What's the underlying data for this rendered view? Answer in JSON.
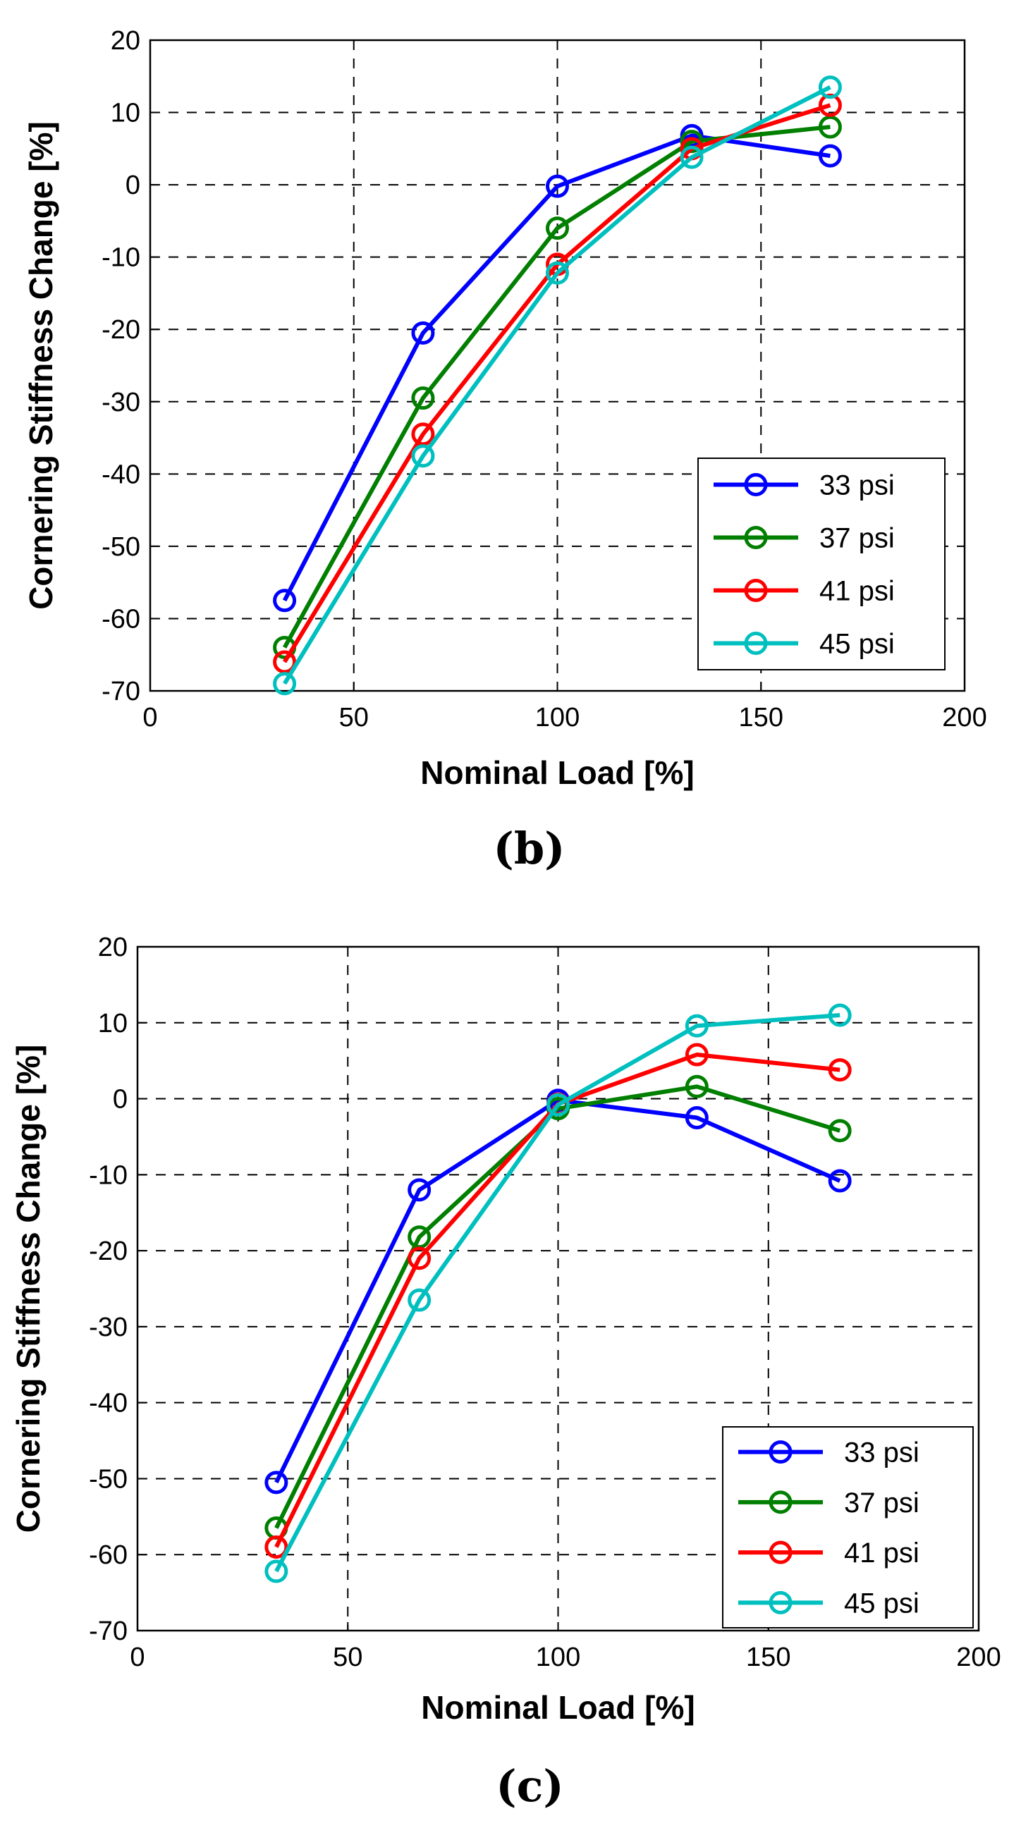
{
  "chart_data": [
    {
      "type": "line",
      "panel": "(b)",
      "title": "",
      "xlabel": "Nominal Load [%]",
      "ylabel": "Cornering Stiffness Change [%]",
      "xlim": [
        0,
        200
      ],
      "ylim": [
        -70,
        20
      ],
      "xticks": [
        0,
        50,
        100,
        150,
        200
      ],
      "yticks": [
        20,
        10,
        0,
        -10,
        -20,
        -30,
        -40,
        -50,
        -60,
        -70
      ],
      "grid": true,
      "legend_position": "lower-right",
      "x": [
        33,
        67,
        100,
        133,
        167
      ],
      "series": [
        {
          "name": "33 psi",
          "color": "#0000ff",
          "values": [
            -57.5,
            -20.5,
            -0.2,
            6.8,
            4.0
          ]
        },
        {
          "name": "37 psi",
          "color": "#007f00",
          "values": [
            -64,
            -29.5,
            -6,
            6.0,
            8.0
          ]
        },
        {
          "name": "41 psi",
          "color": "#ff0000",
          "values": [
            -66,
            -34.5,
            -11,
            5.0,
            11.0
          ]
        },
        {
          "name": "45 psi",
          "color": "#00bfbf",
          "values": [
            -69,
            -37.5,
            -12.2,
            3.8,
            13.5
          ]
        }
      ]
    },
    {
      "type": "line",
      "panel": "(c)",
      "title": "",
      "xlabel": "Nominal Load [%]",
      "ylabel": "Cornering Stiffness Change [%]",
      "xlim": [
        0,
        200
      ],
      "ylim": [
        -70,
        20
      ],
      "xticks": [
        0,
        50,
        100,
        150,
        200
      ],
      "yticks": [
        20,
        10,
        0,
        -10,
        -20,
        -30,
        -40,
        -50,
        -60,
        -70
      ],
      "grid": true,
      "legend_position": "lower-right",
      "x": [
        33,
        67,
        100,
        133,
        167
      ],
      "series": [
        {
          "name": "33 psi",
          "color": "#0000ff",
          "values": [
            -50.5,
            -12,
            -0.2,
            -2.5,
            -10.8
          ]
        },
        {
          "name": "37 psi",
          "color": "#007f00",
          "values": [
            -56.5,
            -18.2,
            -1.3,
            1.6,
            -4.2
          ]
        },
        {
          "name": "41 psi",
          "color": "#ff0000",
          "values": [
            -59,
            -21,
            -0.7,
            5.8,
            3.8
          ]
        },
        {
          "name": "45 psi",
          "color": "#00bfbf",
          "values": [
            -62.2,
            -26.5,
            -0.8,
            9.6,
            11.0
          ]
        }
      ]
    }
  ]
}
